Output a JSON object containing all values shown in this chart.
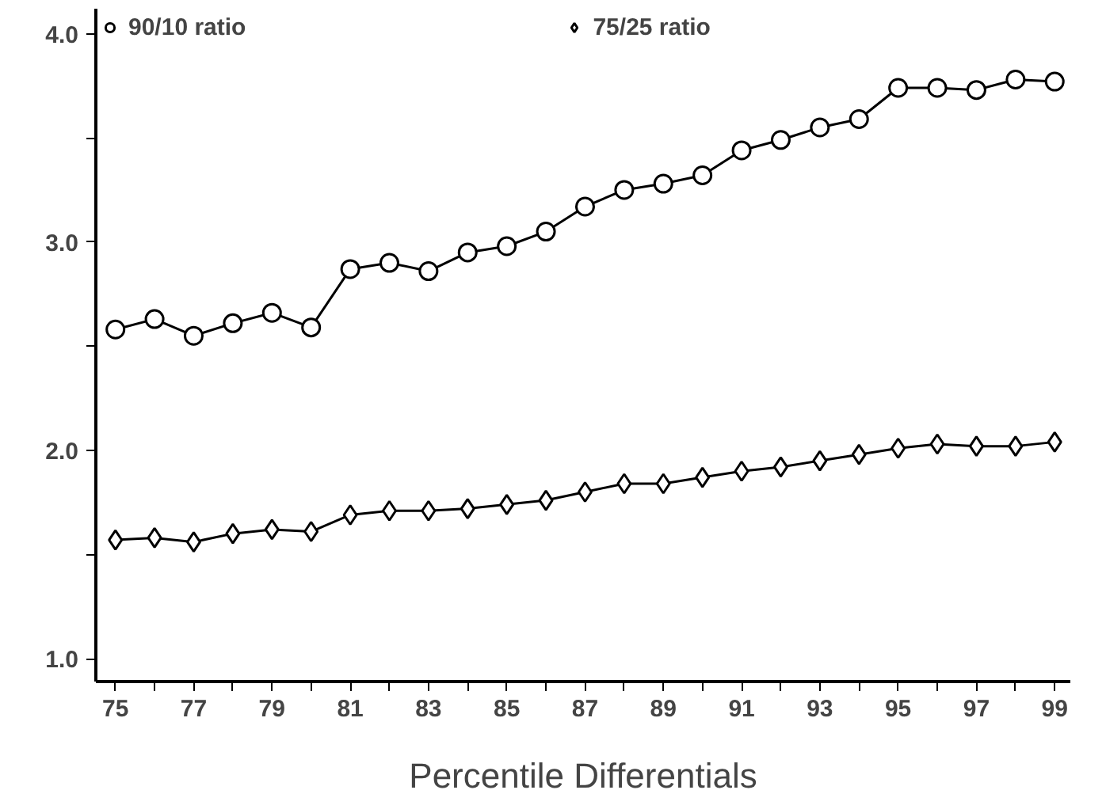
{
  "chart_data": {
    "type": "line",
    "xlabel": "Percentile Differentials",
    "x": [
      75,
      76,
      77,
      78,
      79,
      80,
      81,
      82,
      83,
      84,
      85,
      86,
      87,
      88,
      89,
      90,
      91,
      92,
      93,
      94,
      95,
      96,
      97,
      98,
      99
    ],
    "series": [
      {
        "name": "90/10 ratio",
        "color": "#000000",
        "marker": "circle",
        "values": [
          2.58,
          2.63,
          2.55,
          2.61,
          2.66,
          2.59,
          2.87,
          2.9,
          2.86,
          2.95,
          2.98,
          3.05,
          3.17,
          3.25,
          3.28,
          3.32,
          3.44,
          3.49,
          3.55,
          3.59,
          3.74,
          3.74,
          3.73,
          3.78,
          3.77
        ]
      },
      {
        "name": "75/25 ratio",
        "color": "#000000",
        "marker": "diamond",
        "values": [
          1.57,
          1.58,
          1.56,
          1.6,
          1.62,
          1.61,
          1.69,
          1.71,
          1.71,
          1.72,
          1.74,
          1.76,
          1.8,
          1.84,
          1.84,
          1.87,
          1.9,
          1.92,
          1.95,
          1.98,
          2.01,
          2.03,
          2.02,
          2.02,
          2.04
        ]
      }
    ],
    "xlim": [
      74.5,
      99.4
    ],
    "ylim": [
      0.89,
      4.12
    ],
    "xticks": [
      75,
      {
        "value": 76,
        "label": null
      },
      77,
      {
        "value": 78,
        "label": null
      },
      79,
      {
        "value": 80,
        "label": null
      },
      81,
      {
        "value": 82,
        "label": null
      },
      83,
      {
        "value": 84,
        "label": null
      },
      85,
      {
        "value": 86,
        "label": null
      },
      87,
      {
        "value": 88,
        "label": null
      },
      89,
      {
        "value": 90,
        "label": null
      },
      91,
      {
        "value": 92,
        "label": null
      },
      93,
      {
        "value": 94,
        "label": null
      },
      95,
      {
        "value": 96,
        "label": null
      },
      97,
      {
        "value": 98,
        "label": null
      },
      99
    ],
    "yticks": [
      {
        "value": 1.0,
        "label": "1.0"
      },
      {
        "value": 1.5,
        "label": null
      },
      {
        "value": 2.0,
        "label": "2.0"
      },
      {
        "value": 2.5,
        "label": null
      },
      {
        "value": 3.0,
        "label": "3.0"
      },
      {
        "value": 3.5,
        "label": null
      },
      {
        "value": 4.0,
        "label": "4.0"
      }
    ],
    "grid": false,
    "legend": "top",
    "line_style": "solid"
  }
}
